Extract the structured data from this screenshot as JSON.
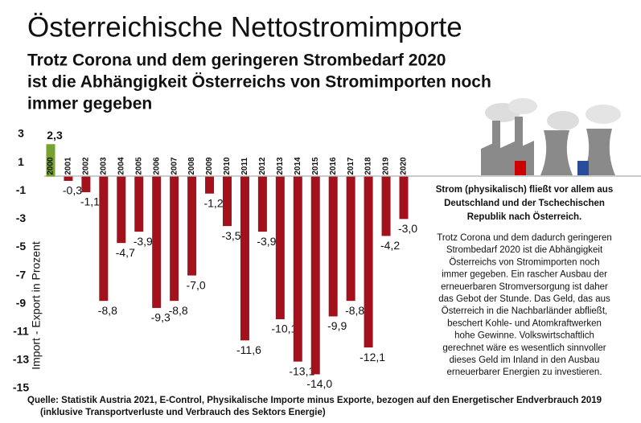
{
  "chart_data": {
    "type": "bar",
    "title": "Österreichische Nettostromimporte",
    "subtitle": [
      "Trotz Corona und dem geringeren Strombedarf 2020",
      "ist die Abhängigkeit Österreichs von Stromimporten noch",
      "immer gegeben"
    ],
    "y_label": "Import - Export in Prozent",
    "categories": [
      "2000",
      "2001",
      "2002",
      "2003",
      "2004",
      "2005",
      "2006",
      "2007",
      "2008",
      "2009",
      "2010",
      "2011",
      "2012",
      "2013",
      "2014",
      "2015",
      "2016",
      "2017",
      "2018",
      "2019",
      "2020"
    ],
    "values": [
      2.3,
      -0.3,
      -1.1,
      -8.8,
      -4.7,
      -3.9,
      -9.3,
      -8.8,
      -7.0,
      -1.2,
      -3.5,
      -11.6,
      -3.9,
      -10.1,
      -13.1,
      -14.0,
      -9.9,
      -8.8,
      -12.1,
      -4.2,
      -3.0
    ],
    "value_labels": [
      "2,3",
      "-0,3",
      "-1,1",
      "-8,8",
      "-4,7",
      "-3,9",
      "-9,3",
      "-8,8",
      "-7,0",
      "-1,2",
      "-3,5",
      "-11,6",
      "-3,9",
      "-10,1",
      "-13,1",
      "-14,0",
      "-9,9",
      "-8,8",
      "-12,1",
      "-4,2",
      "-3,0"
    ],
    "colors": {
      "positive": "#76a22f",
      "negative": "#a3111d"
    },
    "ylim": [
      -15,
      3
    ],
    "yticks": [
      3,
      1,
      -1,
      -3,
      -5,
      -7,
      -9,
      -11,
      -13,
      -15
    ],
    "grid": false,
    "note_bold": [
      "Strom (physikalisch) fließt vor allem aus",
      "Deutschland und der Tschechischen",
      "Republik nach Österreich."
    ],
    "note": [
      "Trotz Corona und dem dadurch geringeren",
      "Strombedarf 2020 ist die Abhängigkeit",
      "Österreichs von Stromimporten noch",
      "immer gegeben. Ein rascher Ausbau der",
      "erneuerbaren Stromversorgung ist daher",
      "das Gebot der Stunde. Das Geld, das aus",
      "Österreich in die Nachbarländer abfließt,",
      "beschert Kohle- und Atomkraftwerken",
      "hohe Gewinne. Volkswirtschaftlich",
      "gerechnet wäre es wesentlich sinnvoller",
      "dieses Geld im Inland in den Ausbau",
      "erneuerbarer Energien zu investieren."
    ],
    "source": [
      "Quelle: Statistik Austria 2021, E-Control, Physikalische Importe minus Exporte, bezogen auf den Energetischer Endverbrauch 2019",
      "(inklusive Transportverluste und Verbrauch des Sektors Energie)"
    ]
  }
}
